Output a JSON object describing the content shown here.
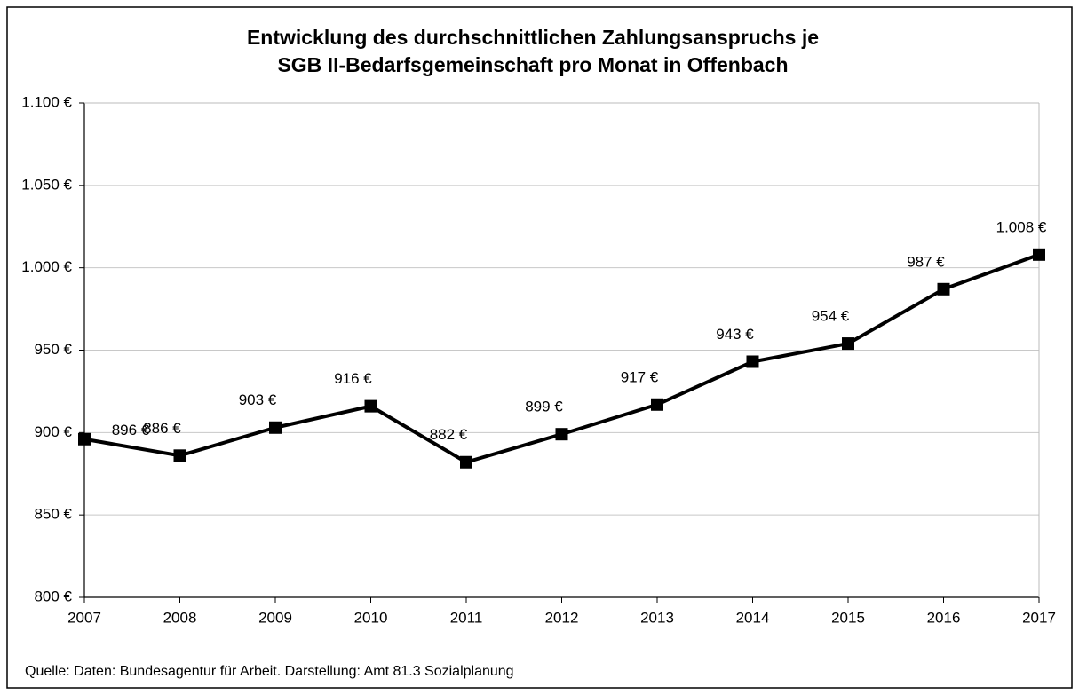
{
  "chart_data": {
    "type": "line",
    "title": [
      "Entwicklung des durchschnittlichen Zahlungsanspruchs je",
      "SGB II-Bedarfsgemeinschaft pro Monat in Offenbach"
    ],
    "x": [
      2007,
      2008,
      2009,
      2010,
      2011,
      2012,
      2013,
      2014,
      2015,
      2016,
      2017
    ],
    "xlim": [
      2007,
      2017
    ],
    "xticks": [
      2007,
      2008,
      2009,
      2010,
      2011,
      2012,
      2013,
      2014,
      2015,
      2016,
      2017
    ],
    "series": [
      {
        "color": "#000000",
        "values": [
          896,
          886,
          903,
          916,
          882,
          899,
          917,
          943,
          954,
          987,
          1008
        ],
        "value_labels": [
          "896 €",
          "886 €",
          "903 €",
          "916 €",
          "882 €",
          "899 €",
          "917 €",
          "943 €",
          "954 €",
          "987 €",
          "1.008 €"
        ]
      }
    ],
    "ylim": [
      800,
      1100
    ],
    "yticks": [
      {
        "value": 800,
        "label": "800 €"
      },
      {
        "value": 850,
        "label": "850 €"
      },
      {
        "value": 900,
        "label": "900 €"
      },
      {
        "value": 950,
        "label": "950 €"
      },
      {
        "value": 1000,
        "label": "1.000 €"
      },
      {
        "value": 1050,
        "label": "1.050 €"
      },
      {
        "value": 1100,
        "label": "1.100 €"
      }
    ],
    "grid": true,
    "source": "Quelle:  Daten: Bundesagentur für Arbeit. Darstellung:  Amt 81.3 Sozialplanung"
  }
}
